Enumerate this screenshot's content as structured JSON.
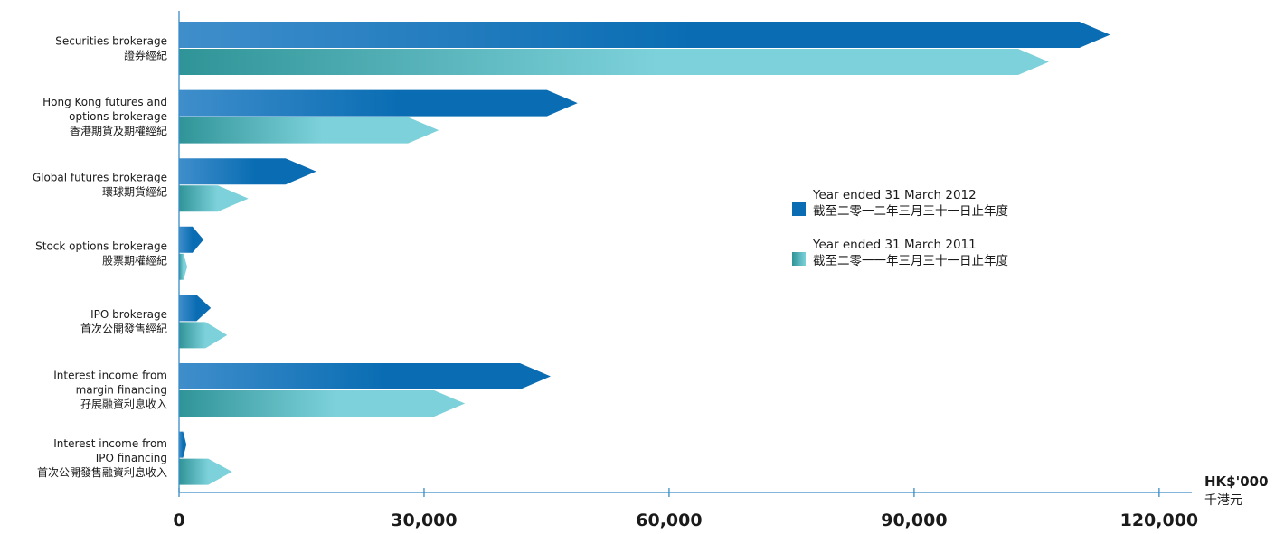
{
  "colors": {
    "series_2012_dark": "#0a6db3",
    "series_2012_light": "#3f8ecb",
    "series_2011_dark": "#2f9497",
    "series_2011_light": "#7dd1da",
    "axis": "#3a8cc6"
  },
  "chart_data": {
    "type": "bar",
    "orientation": "horizontal",
    "categories": [
      {
        "en": [
          "Securities brokerage"
        ],
        "zh": "證券經紀"
      },
      {
        "en": [
          "Hong Kong futures and",
          "options brokerage"
        ],
        "zh": "香港期貨及期權經紀"
      },
      {
        "en": [
          "Global futures brokerage"
        ],
        "zh": "環球期貨經紀"
      },
      {
        "en": [
          "Stock options brokerage"
        ],
        "zh": "股票期權經紀"
      },
      {
        "en": [
          "IPO brokerage"
        ],
        "zh": "首次公開發售經紀"
      },
      {
        "en": [
          "Interest income from",
          "margin financing"
        ],
        "zh": "孖展融資利息收入"
      },
      {
        "en": [
          "Interest income from",
          "IPO financing"
        ],
        "zh": "首次公開發售融資利息收入"
      }
    ],
    "series": [
      {
        "name_en": "Year ended 31 March 2012",
        "name_zh": "截至二零一二年三月三十一日止年度",
        "values": [
          114000,
          48800,
          16800,
          3000,
          3900,
          45500,
          900
        ]
      },
      {
        "name_en": "Year ended 31 March 2011",
        "name_zh": "截至二零一一年三月三十一日止年度",
        "values": [
          106500,
          31800,
          8500,
          1000,
          5900,
          35000,
          6500
        ]
      }
    ],
    "xlim": [
      0,
      124000
    ],
    "ticks": [
      0,
      30000,
      60000,
      90000,
      120000
    ],
    "tick_labels": [
      "0",
      "30,000",
      "60,000",
      "90,000",
      "120,000"
    ],
    "unit_en": "HK$'000",
    "unit_zh": "千港元",
    "legend_position": "right"
  }
}
